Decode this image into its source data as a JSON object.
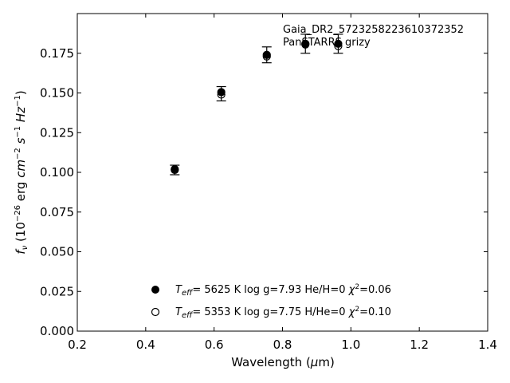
{
  "chart_data": {
    "type": "scatter",
    "xlabel": "Wavelength (μm)",
    "ylabel": "f_ν (10^-26 erg cm^-2 s^-1 Hz^-1)",
    "xlim": [
      0.2,
      1.4
    ],
    "ylim": [
      0.0,
      0.2
    ],
    "xticks": [
      "0.2",
      "0.4",
      "0.6",
      "0.8",
      "1.0",
      "1.2",
      "1.4"
    ],
    "yticks": [
      "0.000",
      "0.025",
      "0.050",
      "0.075",
      "0.100",
      "0.125",
      "0.150",
      "0.175"
    ],
    "grid": false,
    "annotations": [
      "Gaia_DR2_5723258223610372352",
      "PanSTARRS grizy"
    ],
    "observed": {
      "x": [
        0.485,
        0.621,
        0.754,
        0.867,
        0.963
      ],
      "y": [
        0.1015,
        0.1495,
        0.174,
        0.181,
        0.181
      ],
      "yerr": [
        0.003,
        0.0045,
        0.005,
        0.006,
        0.006
      ]
    },
    "series": [
      {
        "name": "T_eff= 5625 K  log g=7.93  He/H=0  χ²=0.06",
        "marker": "filled-circle",
        "x": [
          0.485,
          0.621,
          0.754,
          0.867,
          0.963
        ],
        "y": [
          0.102,
          0.1505,
          0.174,
          0.181,
          0.181
        ]
      },
      {
        "name": "T_eff= 5353 K  log g=7.75  H/He=0  χ²=0.10",
        "marker": "open-circle",
        "x": [
          0.485,
          0.621,
          0.754,
          0.867,
          0.963
        ],
        "y": [
          0.1015,
          0.149,
          0.173,
          0.1805,
          0.1795
        ]
      }
    ]
  }
}
